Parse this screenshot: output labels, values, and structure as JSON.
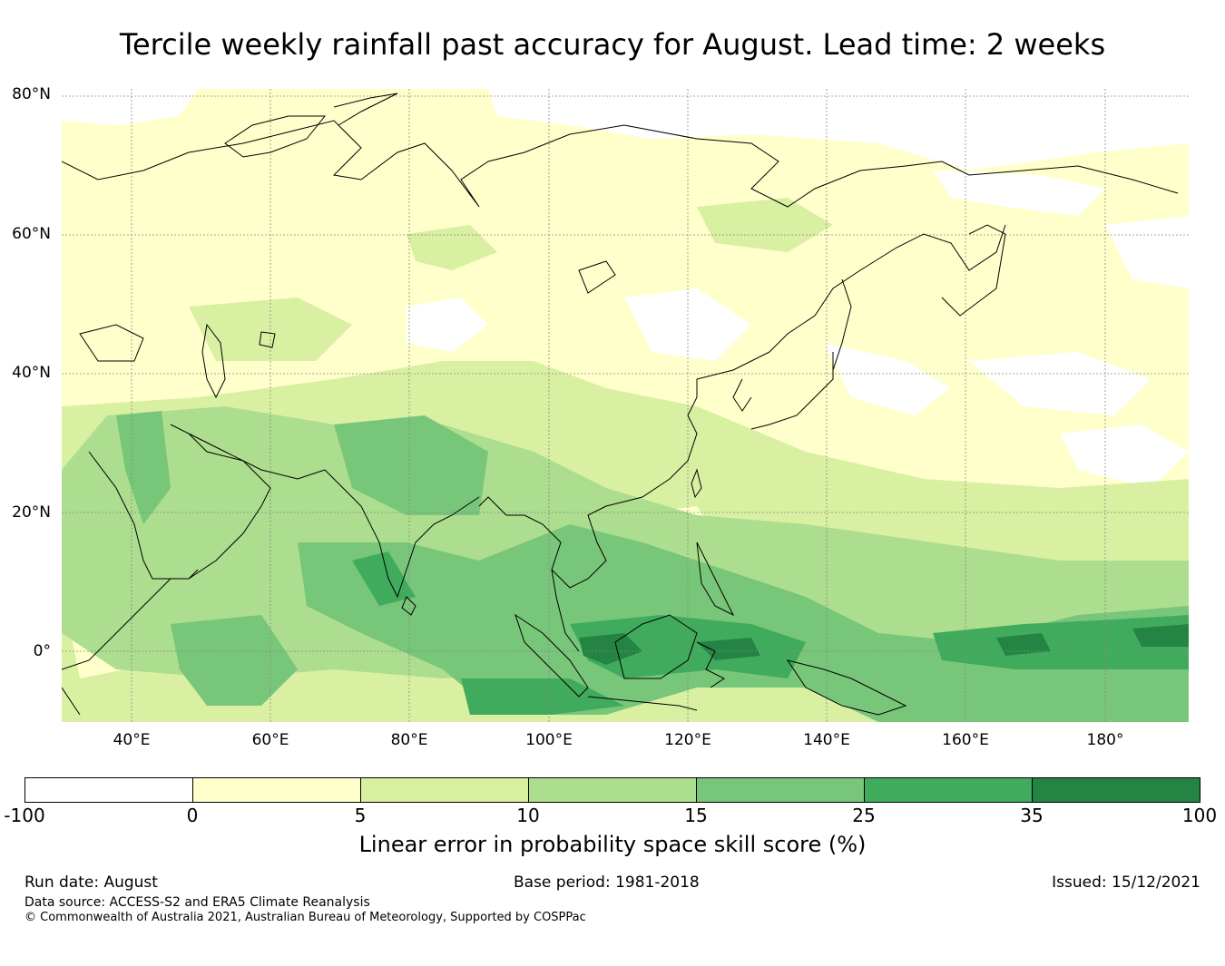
{
  "title": "Tercile weekly rainfall past accuracy for August. Lead time: 2 weeks",
  "map": {
    "lat_labels": [
      "80°N",
      "60°N",
      "40°N",
      "20°N",
      "0°"
    ],
    "lon_labels": [
      "40°E",
      "60°E",
      "80°E",
      "100°E",
      "120°E",
      "140°E",
      "160°E",
      "180°"
    ],
    "extent": {
      "lon_min": 30,
      "lon_max": 192,
      "lat_min": -10,
      "lat_max": 81
    },
    "colors": {
      "land_line": "#000000",
      "grid": "#888888"
    }
  },
  "colorbar": {
    "label": "Linear error in probability space skill score (%)",
    "ticks": [
      "-100",
      "0",
      "5",
      "10",
      "15",
      "25",
      "35",
      "100"
    ],
    "colors": [
      "#ffffff",
      "#ffffcc",
      "#d9f0a3",
      "#addd8e",
      "#78c679",
      "#41ab5d",
      "#238443"
    ]
  },
  "footer": {
    "run_date": "Run date: August",
    "base_period": "Base period: 1981-2018",
    "issued": "Issued: 15/12/2021",
    "data_source": "Data source: ACCESS-S2 and ERA5 Climate Reanalysis",
    "copyright": "© Commonwealth of Australia 2021, Australian Bureau of Meteorology, Supported by COSPPac"
  }
}
